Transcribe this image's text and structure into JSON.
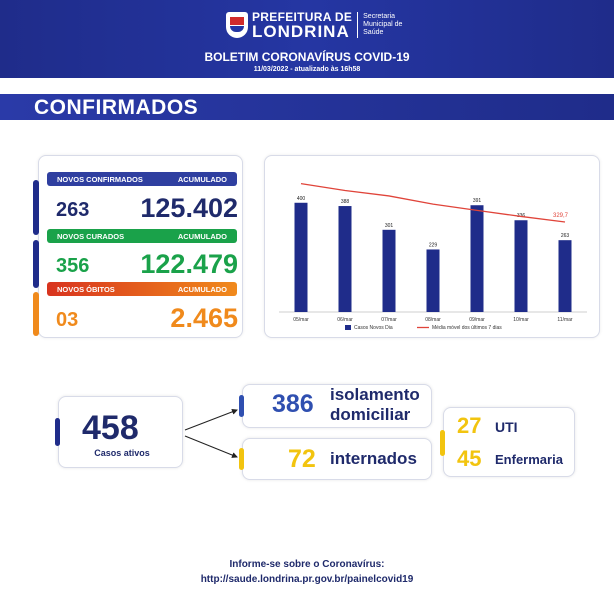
{
  "header": {
    "pref_top": "PREFEITURA DE",
    "pref_city": "LONDRINA",
    "secretaria": [
      "Secretaria",
      "Municipal de",
      "Saúde"
    ],
    "bulletin_title": "BOLETIM CORONAVÍRUS COVID-19",
    "bulletin_date": "11/03/2022 - atualizado às 16h58"
  },
  "section": {
    "title": "CONFIRMADOS"
  },
  "stats": {
    "confirmados": {
      "label": "NOVOS CONFIRMADOS",
      "acc_label": "ACUMULADO",
      "new": "263",
      "total": "125.402",
      "color": "#2f3fa0"
    },
    "curados": {
      "label": "NOVOS CURADOS",
      "acc_label": "ACUMULADO",
      "new": "356",
      "total": "122.479",
      "color": "#1aa24a"
    },
    "obitos": {
      "label": "NOVOS ÓBITOS",
      "acc_label": "ACUMULADO",
      "new": "03",
      "total": "2.465",
      "color": "#f08a1c"
    }
  },
  "chart_data": {
    "type": "bar",
    "categories": [
      "05/mar",
      "06/mar",
      "07/mar",
      "08/mar",
      "09/mar",
      "10/mar",
      "11/mar"
    ],
    "series": [
      {
        "name": "Casos Novos Dia",
        "type": "bar",
        "values": [
          400,
          388,
          301,
          229,
          391,
          336,
          263
        ],
        "color": "#1f2c8a"
      },
      {
        "name": "Média móvel dos últimos 7 dias",
        "type": "line",
        "values": [
          470,
          445,
          425,
          395,
          372,
          350,
          329.7
        ],
        "color": "#e0443a"
      }
    ],
    "last_line_label": "329,7",
    "ylim": [
      0,
      520
    ]
  },
  "active": {
    "count": "458",
    "label": "Casos ativos",
    "isolamento": {
      "count": "386",
      "label_line1": "isolamento",
      "label_line2": "domiciliar"
    },
    "internados": {
      "count": "72",
      "label": "internados"
    },
    "uti": {
      "count": "27",
      "label": "UTI"
    },
    "enfermaria": {
      "count": "45",
      "label": "Enfermaria"
    }
  },
  "footer": {
    "line1": "Informe-se sobre o Coronavírus:",
    "line2": "http://saude.londrina.pr.gov.br/painelcovid19"
  },
  "colors": {
    "navy": "#1f2a6b",
    "yellow": "#f2c40f",
    "blue_accent": "#2f4fb0"
  }
}
